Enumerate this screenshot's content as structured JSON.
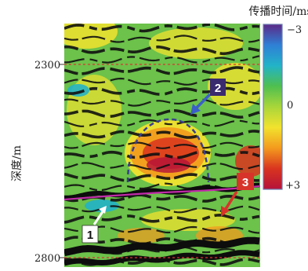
{
  "chart_data": {
    "type": "heatmap",
    "colorbar": {
      "title": "传播时间/ms",
      "ticks": [
        "−3",
        "0",
        "+3"
      ],
      "range": [
        -3,
        3
      ],
      "colors": [
        "#5b2a86",
        "#2f7fd6",
        "#22b3c8",
        "#4fbf4f",
        "#a9d63a",
        "#f2e22e",
        "#f39a1e",
        "#d9341f",
        "#b5123a"
      ]
    },
    "ylabel": "深度/m",
    "yticks": [
      "2300",
      "2800"
    ],
    "ylim": [
      2800,
      2300
    ],
    "annotations": [
      {
        "label": "1",
        "box_color": "#ffffff",
        "text_color": "#111111",
        "arrow_color": "#ffffff"
      },
      {
        "label": "2",
        "box_color": "#3a2a6e",
        "text_color": "#ffffff",
        "arrow_color": "#3a5fc8"
      },
      {
        "label": "3",
        "box_color": "#d8332a",
        "text_color": "#ffffff",
        "arrow_color": "#d8332a"
      }
    ],
    "horizon_color": "#c02aa8",
    "depth_line_color": "#d33",
    "grid": false
  }
}
